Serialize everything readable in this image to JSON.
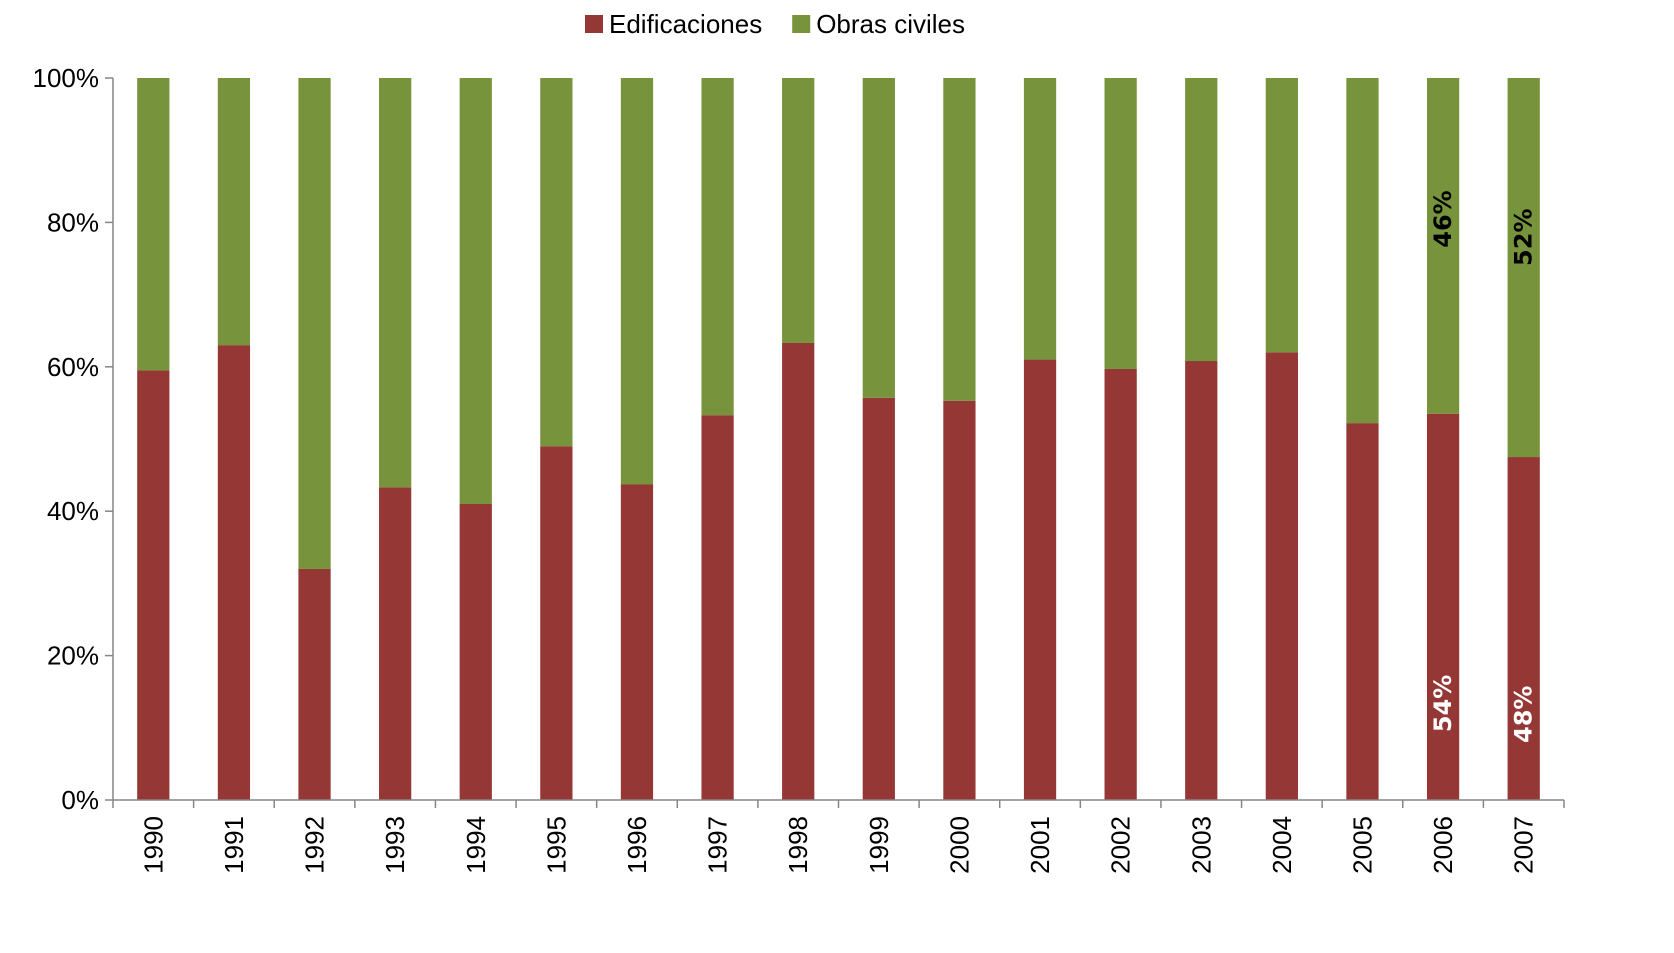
{
  "chart_data": {
    "type": "bar",
    "stacked": true,
    "categories": [
      "1990",
      "1991",
      "1992",
      "1993",
      "1994",
      "1995",
      "1996",
      "1997",
      "1998",
      "1999",
      "2000",
      "2001",
      "2002",
      "2003",
      "2004",
      "2005",
      "2006",
      "2007"
    ],
    "series": [
      {
        "name": "Edificaciones",
        "color": "#953735",
        "values": [
          59.5,
          63,
          32,
          43.3,
          41,
          49,
          43.7,
          53.3,
          63.3,
          55.7,
          55.3,
          61,
          59.7,
          60.8,
          62,
          52.2,
          53.5,
          47.5
        ]
      },
      {
        "name": "Obras civiles",
        "color": "#77933C",
        "values": [
          40.5,
          37,
          68,
          56.7,
          59,
          51,
          56.3,
          46.7,
          36.7,
          44.3,
          44.7,
          39,
          40.3,
          39.2,
          38,
          47.8,
          46.5,
          52.5
        ]
      }
    ],
    "ylim": [
      0,
      100
    ],
    "yticks": [
      "0%",
      "20%",
      "40%",
      "60%",
      "80%",
      "100%"
    ],
    "legend_position": "top",
    "grid": false,
    "annotations": [
      {
        "category": "2006",
        "series": "Obras civiles",
        "text": "46%",
        "color": "#000000"
      },
      {
        "category": "2006",
        "series": "Edificaciones",
        "text": "54%",
        "color": "#ffffff"
      },
      {
        "category": "2007",
        "series": "Obras civiles",
        "text": "52%",
        "color": "#000000"
      },
      {
        "category": "2007",
        "series": "Edificaciones",
        "text": "48%",
        "color": "#ffffff"
      }
    ]
  }
}
